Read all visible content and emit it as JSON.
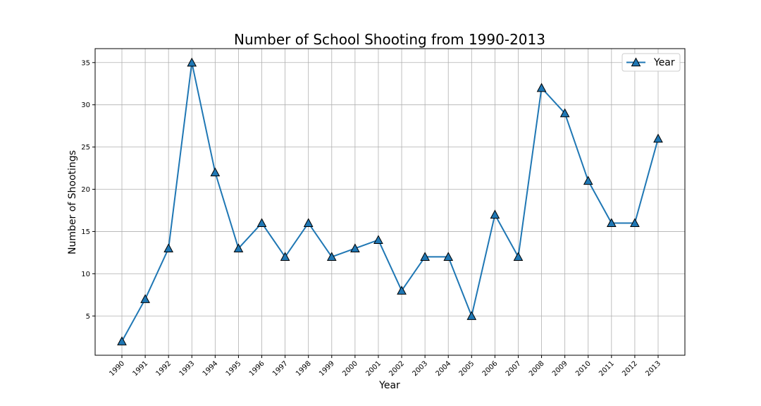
{
  "chart_data": {
    "type": "line",
    "title": "Number of School Shooting from 1990-2013",
    "xlabel": "Year",
    "ylabel": "Number of Shootings",
    "x": [
      "1990",
      "1991",
      "1992",
      "1993",
      "1994",
      "1995",
      "1996",
      "1997",
      "1998",
      "1999",
      "2000",
      "2001",
      "2002",
      "2003",
      "2004",
      "2005",
      "2006",
      "2007",
      "2008",
      "2009",
      "2010",
      "2011",
      "2012",
      "2013"
    ],
    "series": [
      {
        "name": "Year",
        "values": [
          2,
          7,
          13,
          35,
          22,
          13,
          16,
          12,
          16,
          12,
          13,
          14,
          8,
          12,
          12,
          5,
          17,
          12,
          32,
          29,
          21,
          16,
          16,
          26
        ],
        "color": "#1f77b4",
        "marker": "triangle-up"
      }
    ],
    "ylim": [
      0.35,
      36.65
    ],
    "yticks": [
      5,
      10,
      15,
      20,
      25,
      30,
      35
    ],
    "grid": true,
    "legend_position": "top-right",
    "x_tick_rotation": "45 degrees"
  }
}
